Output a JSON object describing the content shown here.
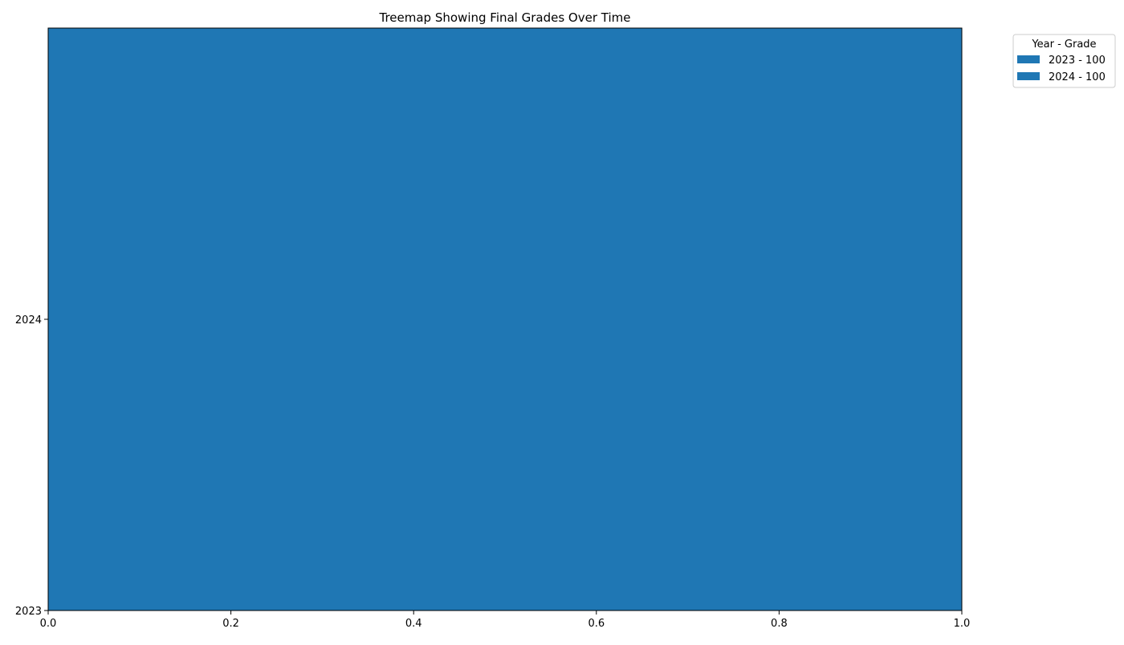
{
  "chart_data": {
    "type": "bar",
    "title": "Treemap Showing Final Grades Over Time",
    "xlabel": "",
    "ylabel": "",
    "xlim": [
      0.0,
      1.0
    ],
    "ylim": [
      2023,
      2024
    ],
    "x_ticks": [
      "0.0",
      "0.2",
      "0.4",
      "0.6",
      "0.8",
      "1.0"
    ],
    "y_ticks": [
      "2023",
      "2024"
    ],
    "grid": false,
    "legend": {
      "title": "Year - Grade",
      "placement": "outside top-right",
      "entries": [
        "2023 - 100",
        "2024 - 100"
      ]
    },
    "series": [
      {
        "name": "2023 - 100",
        "year": 2023,
        "grade": 100,
        "x_start": 0.0,
        "x_end": 1.0,
        "y_start": 2023,
        "y_end": 2024,
        "color": "#1f77b4"
      },
      {
        "name": "2024 - 100",
        "year": 2024,
        "grade": 100,
        "x_start": 0.0,
        "x_end": 1.0,
        "y_start": 2024,
        "y_end": 2025,
        "color": "#1f77b4"
      }
    ]
  }
}
